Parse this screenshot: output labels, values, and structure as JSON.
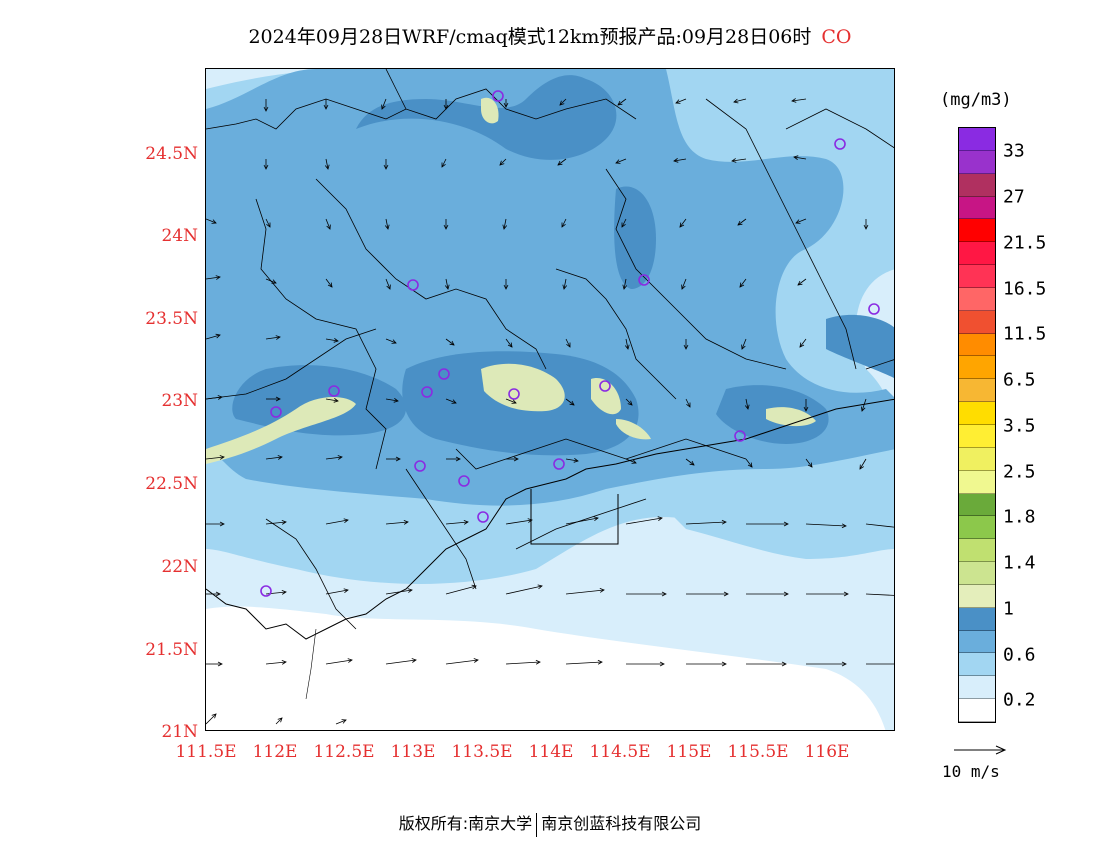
{
  "title": {
    "text": "2024年09月28日WRF/cmaq模式12km预报产品:09月28日06时",
    "species": "CO"
  },
  "axes": {
    "y_labels": [
      "24.5N",
      "24N",
      "23.5N",
      "23N",
      "22.5N",
      "22N",
      "21.5N",
      "21N"
    ],
    "x_labels": [
      "111.5E",
      "112E",
      "112.5E",
      "113E",
      "113.5E",
      "114E",
      "114.5E",
      "115E",
      "115.5E",
      "116E"
    ]
  },
  "legend": {
    "unit": "(mg/m3)",
    "labels": [
      "33",
      "27",
      "21.5",
      "16.5",
      "11.5",
      "6.5",
      "3.5",
      "2.5",
      "1.8",
      "1.4",
      "1",
      "0.6",
      "0.2"
    ],
    "colors": [
      "#8a2be2",
      "#9932cc",
      "#b03060",
      "#c71585",
      "#ff0000",
      "#ff1744",
      "#ff3355",
      "#ff6666",
      "#f05030",
      "#ff8c00",
      "#ffa500",
      "#f7b733",
      "#ffdd00",
      "#ffee33",
      "#f0f060",
      "#f0f890",
      "#6aaa3a",
      "#8cc84b",
      "#c0e070",
      "#cce490",
      "#e4eebb",
      "#4a90c6",
      "#6aaedc",
      "#a2d6f2",
      "#d8eefb",
      "#ffffff"
    ]
  },
  "wind_reference": {
    "label": "10 m/s"
  },
  "footer": {
    "left": "版权所有:南京大学",
    "right": "南京创蓝科技有限公司"
  },
  "stations": {
    "color": "#8a2be2"
  },
  "fill_colors": {
    "lightest": "#d8eefb",
    "light": "#a2d6f2",
    "medium": "#6aaedc",
    "dark": "#4a90c6",
    "green_light": "#dde9b8"
  }
}
